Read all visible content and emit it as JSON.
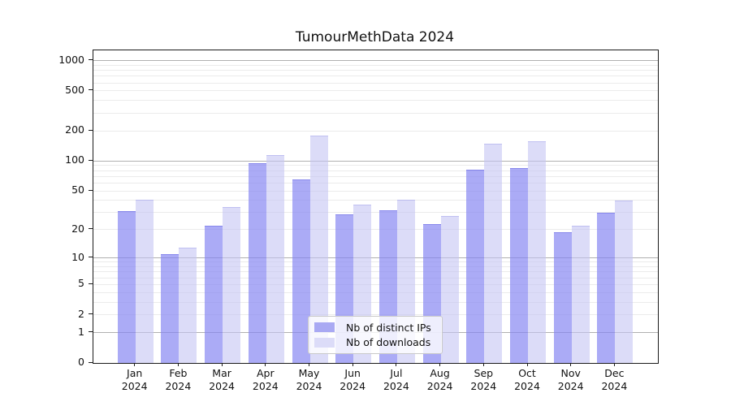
{
  "title": "TumourMethData 2024",
  "legend": {
    "items": [
      {
        "label": "Nb of distinct IPs"
      },
      {
        "label": "Nb of downloads"
      }
    ]
  },
  "colors": {
    "ips_bar": "#a9a9f3",
    "downloads_bar": "#dcdcf8",
    "grid_major": "#b0b0b0",
    "grid_minor": "#ebebeb",
    "background": "#ffffff"
  },
  "chart_data": {
    "type": "bar",
    "title": "TumourMethData 2024",
    "categories": [
      "Jan\n2024",
      "Feb\n2024",
      "Mar\n2024",
      "Apr\n2024",
      "May\n2024",
      "Jun\n2024",
      "Jul\n2024",
      "Aug\n2024",
      "Sep\n2024",
      "Oct\n2024",
      "Nov\n2024",
      "Dec\n2024"
    ],
    "series": [
      {
        "name": "Nb of distinct IPs",
        "color": "#a9a9f3",
        "values": [
          31,
          11,
          22,
          95,
          65,
          29,
          32,
          23,
          82,
          85,
          19,
          30
        ]
      },
      {
        "name": "Nb of downloads",
        "color": "#dcdcf8",
        "values": [
          41,
          13,
          34,
          115,
          180,
          36,
          41,
          28,
          148,
          156,
          22,
          40
        ]
      }
    ],
    "yscale": "log1p",
    "y_ticks": [
      0,
      1,
      2,
      5,
      10,
      20,
      50,
      100,
      200,
      500,
      1000
    ],
    "ylim": [
      0,
      1000
    ],
    "grid": "horizontal major (1,10,100,1000) + minor (2-9 per decade)",
    "legend_position": "lower center"
  }
}
